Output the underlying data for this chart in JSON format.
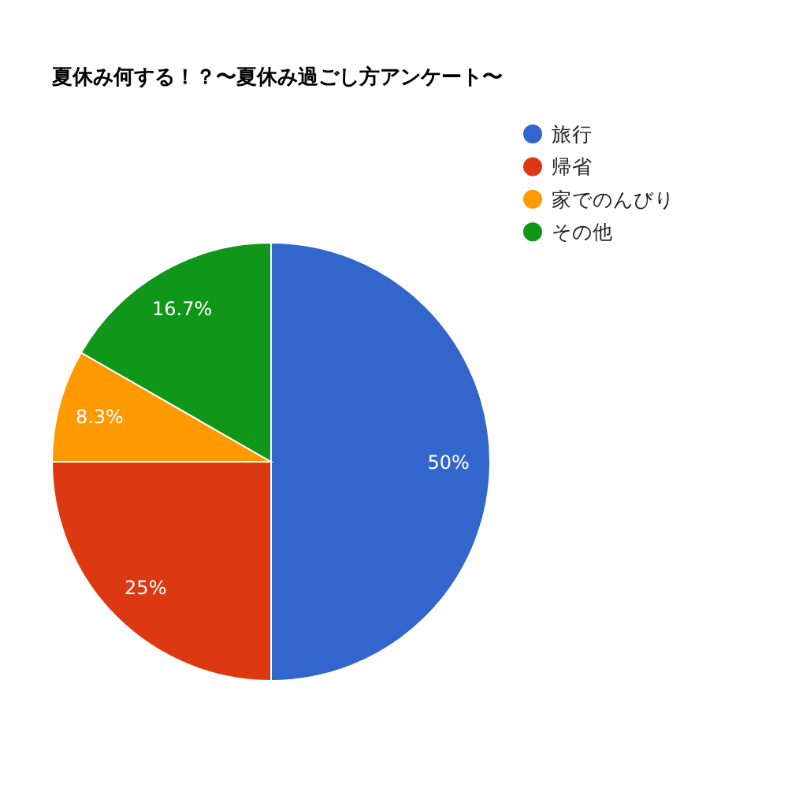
{
  "chart_data": {
    "type": "pie",
    "title": "夏休み何する！？〜夏休み過ごし方アンケート〜",
    "categories": [
      "旅行",
      "帰省",
      "家でのんびり",
      "その他"
    ],
    "values": [
      50,
      25,
      8.3,
      16.7
    ],
    "colors": [
      "#3366cc",
      "#dc3912",
      "#ff9900",
      "#109618"
    ],
    "value_labels": [
      "50%",
      "25%",
      "8.3%",
      "16.7%"
    ],
    "legend": "right"
  }
}
